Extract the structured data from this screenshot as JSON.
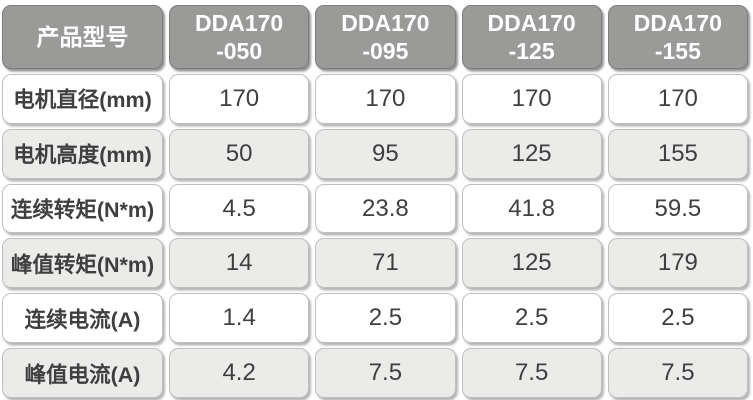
{
  "colors": {
    "header_bg": "#9a9a98",
    "header_text": "#ffffff",
    "row_bg": "#ffffff",
    "row_alt_bg": "#ebebe9",
    "text": "#3f3f3f",
    "border": "#bfbfbd"
  },
  "table": {
    "corner_label": "产品型号",
    "models": [
      {
        "name": "DDA170",
        "suffix": "-050"
      },
      {
        "name": "DDA170",
        "suffix": "-095"
      },
      {
        "name": "DDA170",
        "suffix": "-125"
      },
      {
        "name": "DDA170",
        "suffix": "-155"
      }
    ],
    "rows": [
      {
        "label": "电机直径(mm)",
        "values": [
          "170",
          "170",
          "170",
          "170"
        ]
      },
      {
        "label": "电机高度(mm)",
        "values": [
          "50",
          "95",
          "125",
          "155"
        ]
      },
      {
        "label": "连续转矩(N*m)",
        "values": [
          "4.5",
          "23.8",
          "41.8",
          "59.5"
        ]
      },
      {
        "label": "峰值转矩(N*m)",
        "values": [
          "14",
          "71",
          "125",
          "179"
        ]
      },
      {
        "label": "连续电流(A)",
        "values": [
          "1.4",
          "2.5",
          "2.5",
          "2.5"
        ]
      },
      {
        "label": "峰值电流(A)",
        "values": [
          "4.2",
          "7.5",
          "7.5",
          "7.5"
        ]
      }
    ]
  }
}
